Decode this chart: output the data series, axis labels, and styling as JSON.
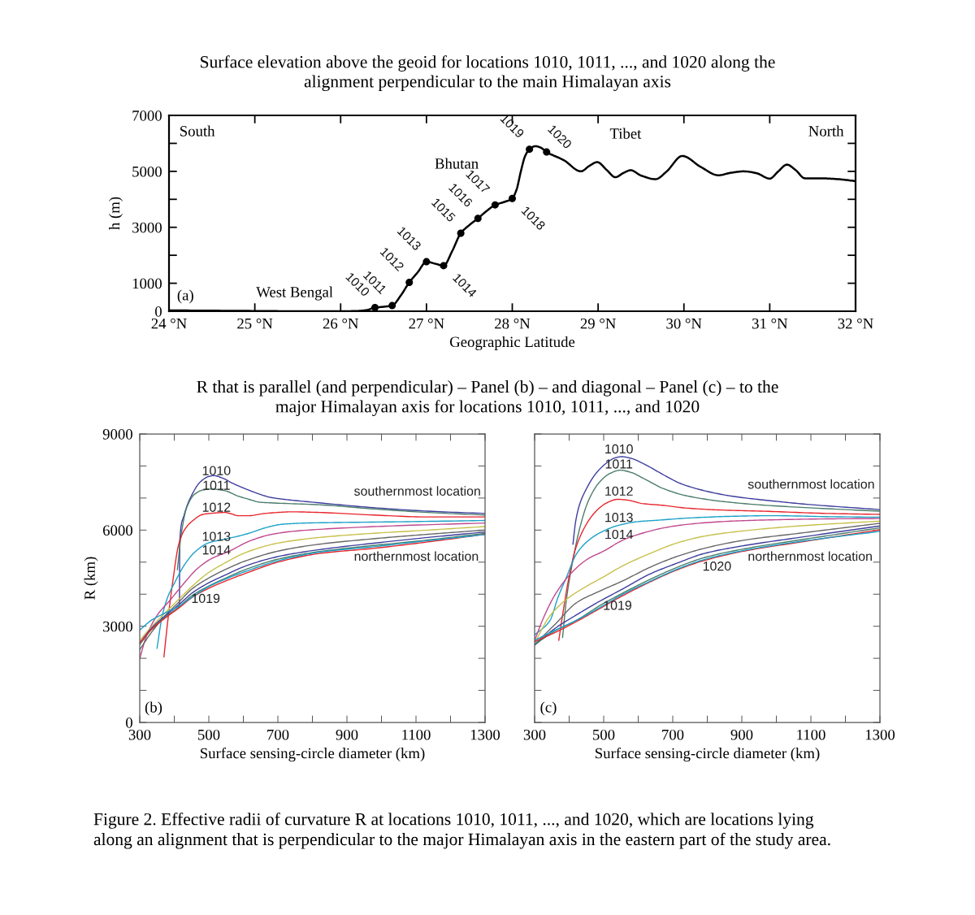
{
  "chart_data": [
    {
      "type": "line",
      "title": "Surface elevation above the geoid for locations 1010, 1011, ..., and 1020 along the alignment perpendicular to the main Himalayan axis",
      "xlabel": "Geographic Latitude",
      "ylabel": "h (m)",
      "xlim": [
        24,
        32
      ],
      "ylim": [
        0,
        7000
      ],
      "xticks": [
        {
          "value": 24,
          "label": "24 °N"
        },
        {
          "value": 25,
          "label": "25 °N"
        },
        {
          "value": 26,
          "label": "26 °N"
        },
        {
          "value": 27,
          "label": "27 °N"
        },
        {
          "value": 28,
          "label": "28 °N"
        },
        {
          "value": 29,
          "label": "29 °N"
        },
        {
          "value": 30,
          "label": "30 °N"
        },
        {
          "value": 31,
          "label": "31 °N"
        },
        {
          "value": 32,
          "label": "32 °N"
        }
      ],
      "yticks": [
        0,
        1000,
        {
          "value": 2000,
          "label": null
        },
        3000,
        {
          "value": 4000,
          "label": null
        },
        5000,
        {
          "value": 6000,
          "label": null
        },
        7000
      ],
      "series": [
        {
          "type": "line",
          "color": "#000000",
          "x": [
            24.0,
            24.5,
            25.0,
            25.5,
            26.0,
            26.2,
            26.3,
            26.4,
            26.5,
            26.6,
            26.7,
            26.8,
            26.9,
            27.0,
            27.1,
            27.2,
            27.3,
            27.4,
            27.5,
            27.6,
            27.7,
            27.8,
            27.9,
            28.0,
            28.05,
            28.1,
            28.15,
            28.2,
            28.27,
            28.33,
            28.4,
            28.6,
            28.8,
            28.9,
            28.99,
            29.1,
            29.2,
            29.3,
            29.38,
            29.5,
            29.67,
            29.8,
            29.98,
            30.2,
            30.4,
            30.55,
            30.7,
            30.85,
            31.0,
            31.1,
            31.2,
            31.3,
            31.41,
            31.6,
            31.8,
            32.0
          ],
          "values": [
            30,
            20,
            10,
            0,
            0,
            10,
            40,
            130,
            160,
            200,
            560,
            1030,
            1400,
            1770,
            1700,
            1630,
            2150,
            2790,
            3080,
            3320,
            3580,
            3800,
            3900,
            4030,
            4350,
            5000,
            5550,
            5790,
            5900,
            5850,
            5690,
            5400,
            5000,
            5200,
            5330,
            5050,
            4790,
            4950,
            5040,
            4850,
            4720,
            5000,
            5550,
            5150,
            4860,
            4950,
            5000,
            4930,
            4740,
            5000,
            5240,
            5050,
            4750,
            4750,
            4720,
            4650
          ]
        },
        {
          "type": "scatter",
          "color": "#000000",
          "marker": "circle",
          "x": [
            26.4,
            26.6,
            26.8,
            27.0,
            27.2,
            27.4,
            27.6,
            27.8,
            28.0,
            28.2,
            28.4
          ],
          "values": [
            130,
            200,
            1030,
            1770,
            1630,
            2790,
            3320,
            3800,
            4030,
            5790,
            5690
          ]
        }
      ],
      "annotations": [
        "(a)",
        "South",
        "North",
        "Tibet",
        "Bhutan",
        "West Bengal",
        {
          "text": "1010",
          "x": 26.4,
          "y": 130
        },
        {
          "text": "1011",
          "x": 26.6,
          "y": 200
        },
        {
          "text": "1012",
          "x": 26.8,
          "y": 1030
        },
        {
          "text": "1013",
          "x": 27.0,
          "y": 1770
        },
        {
          "text": "1014",
          "x": 27.2,
          "y": 1630
        },
        {
          "text": "1015",
          "x": 27.4,
          "y": 2790
        },
        {
          "text": "1016",
          "x": 27.6,
          "y": 3320
        },
        {
          "text": "1017",
          "x": 27.8,
          "y": 3800
        },
        {
          "text": "1018",
          "x": 28.0,
          "y": 4030
        },
        {
          "text": "1019",
          "x": 28.2,
          "y": 5790
        },
        {
          "text": "1020",
          "x": 28.4,
          "y": 5690
        }
      ]
    },
    {
      "type": "line",
      "title": "R that is parallel (and perpendicular) – Panel (b) – and diagonal – Panel (c) – to the major Himalayan axis for locations 1010, 1011, ..., and 1020",
      "xlabel": "Surface sensing-circle diameter (km)",
      "ylabel": "R (km)",
      "xlim": [
        300,
        1300
      ],
      "ylim": [
        0,
        9000
      ],
      "xticks": [
        300,
        {
          "value": 400,
          "label": null
        },
        500,
        {
          "value": 600,
          "label": null
        },
        700,
        {
          "value": 800,
          "label": null
        },
        900,
        {
          "value": 1000,
          "label": null
        },
        1100,
        {
          "value": 1200,
          "label": null
        },
        1300
      ],
      "yticks": [
        0,
        {
          "value": 1000,
          "label": null
        },
        {
          "value": 2000,
          "label": null
        },
        3000,
        {
          "value": 4000,
          "label": null
        },
        {
          "value": 5000,
          "label": null
        },
        6000,
        {
          "value": 7000,
          "label": null
        },
        {
          "value": 8000,
          "label": null
        },
        9000
      ],
      "series": [
        {
          "color": "#3d3d9e",
          "x": [
            415,
            416,
            428,
            452,
            475,
            499,
            514,
            538,
            569,
            601,
            632,
            679,
            711,
            820,
            977,
            1134,
            1300
          ],
          "values": [
            3700,
            5690,
            6450,
            7120,
            7500,
            7670,
            7700,
            7630,
            7460,
            7310,
            7180,
            7020,
            6970,
            6850,
            6700,
            6590,
            6520
          ]
        },
        {
          "color": "#4a7d6a",
          "x": [
            409,
            420,
            436,
            459,
            483,
            506,
            546,
            585,
            616,
            648,
            679,
            820,
            977,
            1134,
            1300
          ],
          "values": [
            4760,
            5860,
            6700,
            7120,
            7250,
            7280,
            7230,
            7060,
            6960,
            6870,
            6850,
            6790,
            6660,
            6550,
            6470
          ]
        },
        {
          "color": "#e8242c",
          "x": [
            370,
            381,
            397,
            412,
            428,
            452,
            483,
            514,
            546,
            561,
            585,
            616,
            663,
            742,
            820,
            977,
            1134,
            1300
          ],
          "values": [
            2040,
            3150,
            4500,
            5520,
            5980,
            6280,
            6490,
            6530,
            6550,
            6520,
            6450,
            6450,
            6520,
            6570,
            6550,
            6470,
            6410,
            6410
          ]
        },
        {
          "color": "#1aa0c8",
          "x": [
            350,
            365,
            381,
            404,
            428,
            459,
            499,
            538,
            577,
            616,
            663,
            711,
            781,
            899,
            1056,
            1300
          ],
          "values": [
            2310,
            3320,
            3910,
            4420,
            4890,
            5310,
            5600,
            5700,
            5790,
            5900,
            6070,
            6180,
            6220,
            6240,
            6260,
            6300
          ]
        },
        {
          "color": "#c0488e",
          "x": [
            300,
            318,
            349,
            389,
            428,
            467,
            506,
            561,
            616,
            679,
            742,
            899,
            1056,
            1300
          ],
          "values": [
            1990,
            2650,
            3320,
            3830,
            4340,
            4800,
            5100,
            5350,
            5650,
            5860,
            5960,
            6070,
            6140,
            6220
          ]
        },
        {
          "color": "#c8c04a",
          "x": [
            300,
            334,
            373,
            412,
            452,
            499,
            546,
            609,
            703,
            820,
            977,
            1134,
            1300
          ],
          "values": [
            2560,
            2980,
            3410,
            3830,
            4250,
            4670,
            4970,
            5310,
            5600,
            5770,
            5900,
            6000,
            6110
          ]
        },
        {
          "color": "#666666",
          "x": [
            300,
            334,
            373,
            412,
            452,
            499,
            546,
            609,
            703,
            820,
            977,
            1134,
            1300
          ],
          "values": [
            2270,
            2810,
            3320,
            3740,
            4170,
            4500,
            4760,
            5050,
            5350,
            5560,
            5730,
            5870,
            6000
          ]
        },
        {
          "color": "#3d3d9e",
          "x": [
            300,
            334,
            373,
            412,
            452,
            499,
            546,
            609,
            703,
            820,
            977,
            1134,
            1300
          ],
          "values": [
            2480,
            2940,
            3320,
            3660,
            4040,
            4350,
            4590,
            4890,
            5180,
            5390,
            5590,
            5770,
            5940
          ]
        },
        {
          "color": "#4a7d6a",
          "x": [
            300,
            334,
            373,
            412,
            452,
            499,
            546,
            609,
            703,
            820,
            977,
            1134,
            1300
          ],
          "values": [
            2430,
            2900,
            3280,
            3590,
            3960,
            4250,
            4490,
            4780,
            5100,
            5330,
            5520,
            5690,
            5900
          ]
        },
        {
          "color": "#e8242c",
          "x": [
            300,
            334,
            373,
            412,
            452,
            499,
            546,
            609,
            703,
            820,
            977,
            1134,
            1300
          ],
          "values": [
            2480,
            2900,
            3250,
            3560,
            3900,
            4180,
            4400,
            4660,
            5010,
            5270,
            5430,
            5630,
            5870
          ]
        },
        {
          "color": "#1aa0c8",
          "x": [
            300,
            334,
            373,
            412,
            452,
            499,
            546,
            609,
            703,
            820,
            977,
            1134,
            1300
          ],
          "values": [
            2880,
            3190,
            3410,
            3620,
            3910,
            4230,
            4460,
            4720,
            5050,
            5310,
            5480,
            5670,
            5860
          ]
        }
      ],
      "annotations": [
        "(b)",
        "1010",
        "1011",
        "1012",
        "1013",
        "1014",
        "1019",
        "southernmost location",
        "northernmost location"
      ]
    },
    {
      "type": "line",
      "xlabel": "Surface sensing-circle diameter (km)",
      "xlim": [
        300,
        1300
      ],
      "ylim": [
        0,
        9000
      ],
      "tick_labels": "x",
      "xticks": [
        300,
        {
          "value": 400,
          "label": null
        },
        500,
        {
          "value": 600,
          "label": null
        },
        700,
        {
          "value": 800,
          "label": null
        },
        900,
        {
          "value": 1000,
          "label": null
        },
        1100,
        {
          "value": 1200,
          "label": null
        },
        1300
      ],
      "yticks": [
        0,
        {
          "value": 1000,
          "label": null
        },
        {
          "value": 2000,
          "label": null
        },
        3000,
        {
          "value": 4000,
          "label": null
        },
        {
          "value": 5000,
          "label": null
        },
        6000,
        {
          "value": 7000,
          "label": null
        },
        {
          "value": 8000,
          "label": null
        },
        9000
      ],
      "series": [
        {
          "color": "#3d3d9e",
          "x": [
            411,
            419,
            430,
            450,
            477,
            509,
            532,
            552,
            579,
            619,
            674,
            721,
            791,
            870,
            988,
            1105,
            1300
          ],
          "values": [
            5560,
            6280,
            6790,
            7290,
            7760,
            8100,
            8250,
            8290,
            8240,
            8050,
            7720,
            7460,
            7230,
            7060,
            6910,
            6790,
            6640
          ]
        },
        {
          "color": "#4a7d6a",
          "x": [
            381,
            391,
            407,
            430,
            454,
            485,
            517,
            548,
            579,
            619,
            674,
            736,
            831,
            948,
            1105,
            1300
          ],
          "values": [
            2650,
            3740,
            4840,
            6030,
            6870,
            7460,
            7760,
            7870,
            7800,
            7590,
            7290,
            7080,
            6910,
            6790,
            6690,
            6590
          ]
        },
        {
          "color": "#e8242c",
          "x": [
            370,
            383,
            399,
            419,
            446,
            477,
            509,
            540,
            572,
            611,
            674,
            736,
            831,
            988,
            1145,
            1300
          ],
          "values": [
            2560,
            3490,
            4500,
            5430,
            6110,
            6580,
            6850,
            6960,
            6930,
            6830,
            6770,
            6690,
            6630,
            6580,
            6520,
            6490
          ]
        },
        {
          "color": "#1aa0c8",
          "x": [
            300,
            344,
            368,
            391,
            422,
            462,
            501,
            540,
            595,
            658,
            752,
            870,
            988,
            1145,
            1300
          ],
          "values": [
            2730,
            3170,
            3910,
            4500,
            5270,
            5730,
            5980,
            6140,
            6260,
            6310,
            6380,
            6430,
            6450,
            6420,
            6400
          ]
        },
        {
          "color": "#c0488e",
          "x": [
            300,
            328,
            360,
            407,
            454,
            501,
            556,
            611,
            674,
            752,
            870,
            988,
            1145,
            1300
          ],
          "values": [
            2560,
            3320,
            4000,
            4670,
            5100,
            5350,
            5690,
            5900,
            6070,
            6190,
            6280,
            6320,
            6350,
            6360
          ]
        },
        {
          "color": "#c8c04a",
          "x": [
            300,
            344,
            391,
            438,
            501,
            556,
            634,
            713,
            791,
            909,
            1066,
            1300
          ],
          "values": [
            2480,
            3320,
            3830,
            4170,
            4550,
            4890,
            5270,
            5600,
            5810,
            5980,
            6130,
            6280
          ]
        },
        {
          "color": "#666666",
          "x": [
            300,
            360,
            422,
            485,
            556,
            634,
            713,
            791,
            909,
            1066,
            1300
          ],
          "values": [
            2430,
            3070,
            3740,
            4080,
            4420,
            4840,
            5180,
            5430,
            5690,
            5900,
            6210
          ]
        },
        {
          "color": "#3d3d9e",
          "x": [
            300,
            360,
            422,
            485,
            556,
            634,
            713,
            791,
            909,
            1066,
            1300
          ],
          "values": [
            2410,
            2940,
            3360,
            3760,
            4170,
            4630,
            4970,
            5270,
            5520,
            5770,
            6130
          ]
        },
        {
          "color": "#4a7d6a",
          "x": [
            300,
            360,
            422,
            485,
            556,
            634,
            713,
            791,
            909,
            1066,
            1300
          ],
          "values": [
            2430,
            2860,
            3190,
            3620,
            4040,
            4460,
            4840,
            5140,
            5420,
            5690,
            6070
          ]
        },
        {
          "color": "#e8242c",
          "x": [
            300,
            360,
            422,
            485,
            556,
            634,
            713,
            791,
            909,
            1066,
            1300
          ],
          "values": [
            2520,
            2810,
            3150,
            3530,
            3960,
            4380,
            4760,
            5050,
            5350,
            5620,
            6010
          ]
        },
        {
          "color": "#1aa0c8",
          "x": [
            300,
            360,
            422,
            485,
            556,
            634,
            713,
            791,
            909,
            1066,
            1300
          ],
          "values": [
            2560,
            2880,
            3190,
            3560,
            4000,
            4400,
            4780,
            5080,
            5370,
            5640,
            5960
          ]
        }
      ],
      "annotations": [
        "(c)",
        "1010",
        "1011",
        "1012",
        "1013",
        "1014",
        "1019",
        "1020",
        "southernmost location",
        "northernmost location",
        "Figure 2. Effective radii of curvature R at locations 1010, 1011, ..., and 1020, which are locations lying along an alignment that is perpendicular to the major Himalayan axis in the eastern part of the study area."
      ]
    }
  ]
}
